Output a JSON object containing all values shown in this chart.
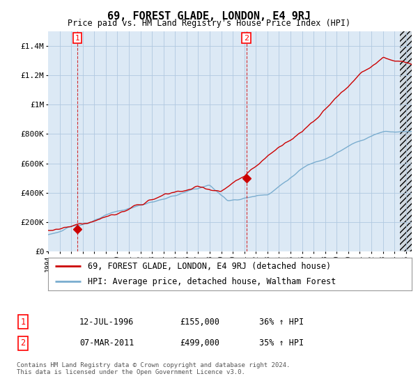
{
  "title": "69, FOREST GLADE, LONDON, E4 9RJ",
  "subtitle": "Price paid vs. HM Land Registry's House Price Index (HPI)",
  "ylabel_ticks": [
    "£0",
    "£200K",
    "£400K",
    "£600K",
    "£800K",
    "£1M",
    "£1.2M",
    "£1.4M"
  ],
  "ytick_values": [
    0,
    200000,
    400000,
    600000,
    800000,
    1000000,
    1200000,
    1400000
  ],
  "ylim": [
    0,
    1500000
  ],
  "xlim_start": 1994.0,
  "xlim_end": 2025.5,
  "sale1_x": 1996.54,
  "sale1_y": 155000,
  "sale2_x": 2011.18,
  "sale2_y": 499000,
  "sale1_label": "1",
  "sale2_label": "2",
  "sale_color": "#cc0000",
  "hpi_color": "#7aadcf",
  "chart_bg": "#dce9f5",
  "legend_line1": "69, FOREST GLADE, LONDON, E4 9RJ (detached house)",
  "legend_line2": "HPI: Average price, detached house, Waltham Forest",
  "annotation1_date": "12-JUL-1996",
  "annotation1_price": "£155,000",
  "annotation1_hpi": "36% ↑ HPI",
  "annotation2_date": "07-MAR-2011",
  "annotation2_price": "£499,000",
  "annotation2_hpi": "35% ↑ HPI",
  "footer": "Contains HM Land Registry data © Crown copyright and database right 2024.\nThis data is licensed under the Open Government Licence v3.0.",
  "background_color": "#ffffff",
  "grid_color": "#b0c8e0",
  "hatch_right_start": 2024.5
}
